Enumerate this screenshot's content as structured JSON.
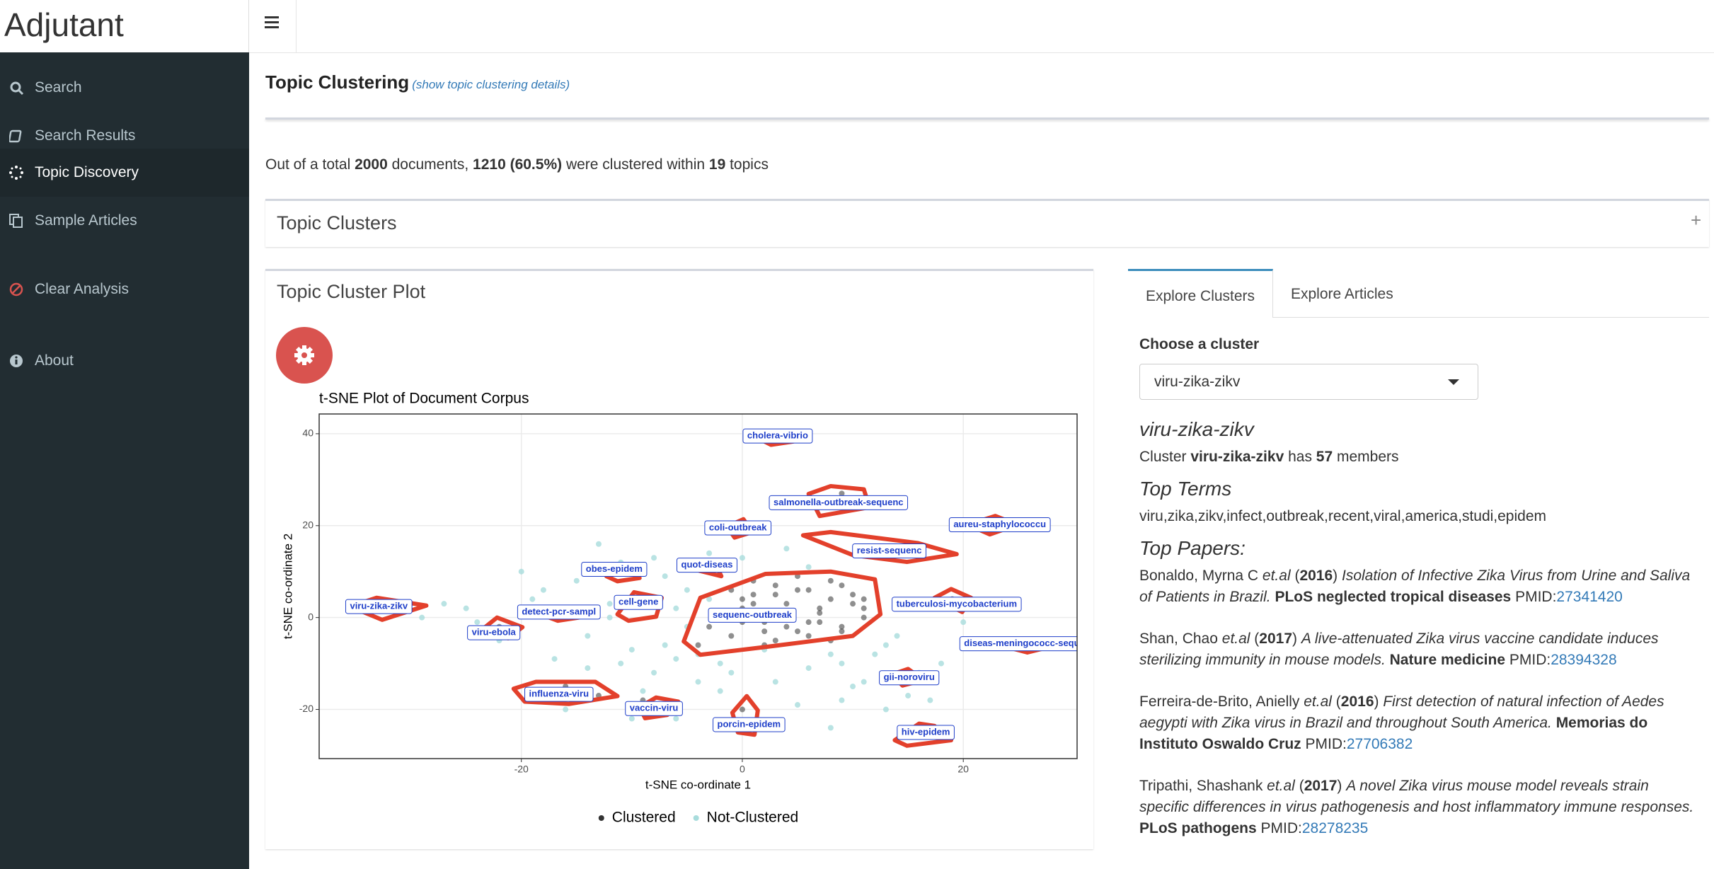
{
  "app": {
    "brand": "Adjutant",
    "nav": [
      {
        "label": "Search",
        "icon": "search"
      },
      {
        "label": "Search Results",
        "icon": "book"
      },
      {
        "label": "Topic Discovery",
        "icon": "spinner"
      },
      {
        "label": "Sample Articles",
        "icon": "copy"
      },
      {
        "label": "Clear Analysis",
        "icon": "ban"
      },
      {
        "label": "About",
        "icon": "info"
      }
    ],
    "active_nav": 2
  },
  "header": {
    "title": "Topic Clustering",
    "details_link": "(show topic clustering details)"
  },
  "summary": [
    {
      "text": "Out of a total ",
      "style": "n"
    },
    {
      "text": "2000",
      "style": "b"
    },
    {
      "text": " documents, ",
      "style": "n"
    },
    {
      "text": "1210 (60.5%)",
      "style": "b"
    },
    {
      "text": " were clustered within ",
      "style": "n"
    },
    {
      "text": "19",
      "style": "b"
    },
    {
      "text": " topics",
      "style": "n"
    }
  ],
  "clusters_box": {
    "title": "Topic Clusters",
    "toggle": "+"
  },
  "plot_box": {
    "title": "Topic Cluster Plot"
  },
  "chart_data": {
    "type": "scatter",
    "title": "t-SNE Plot of Document Corpus",
    "xlabel": "t-SNE co-ordinate 1",
    "ylabel": "t-SNE co-ordinate 2",
    "xlim": [
      -38.3,
      30.3
    ],
    "ylim": [
      -30.7,
      44.3
    ],
    "xticks": [
      -20,
      0,
      20
    ],
    "yticks": [
      -20,
      0,
      20,
      40
    ],
    "grid": true,
    "legend": "bottom",
    "hull_color": "#e3402b",
    "label_color": "#1f3fc9",
    "series": [
      {
        "name": "Clustered",
        "color": "#333333",
        "x": [
          0,
          1,
          2,
          3,
          4,
          5,
          6,
          7,
          8,
          9,
          10,
          11,
          -2,
          -1,
          1,
          3,
          5,
          7,
          9,
          11,
          -3,
          0,
          2,
          4,
          6,
          8,
          10,
          -4,
          -1,
          2,
          5,
          8,
          11,
          1,
          4,
          7,
          3,
          6,
          9,
          0,
          -33,
          -31,
          -22,
          -21,
          -16,
          -9,
          -8,
          -15,
          -13,
          0,
          1,
          16,
          17,
          9,
          10,
          14,
          15,
          19
        ],
        "y": [
          2,
          5,
          -1,
          7,
          3,
          -3,
          6,
          1,
          4,
          -2,
          5,
          2,
          0,
          -4,
          8,
          -5,
          9,
          -1,
          7,
          0,
          -2,
          4,
          -6,
          1,
          -4,
          8,
          3,
          -6,
          6,
          -3,
          6,
          -5,
          4,
          3,
          -2,
          2,
          5,
          -1,
          -3,
          -1,
          2,
          3,
          -2,
          -3,
          -15,
          -18,
          -19,
          -16,
          -17,
          -20,
          -23,
          -24,
          -26,
          27,
          25,
          15,
          16,
          4
        ]
      },
      {
        "name": "Not-Clustered",
        "color": "#a8dcdc",
        "x": [
          -25,
          -22,
          -19,
          -17,
          -14,
          -12,
          -10,
          -8,
          -6,
          -4,
          -2,
          -13,
          -11,
          -7,
          -5,
          -3,
          12,
          14,
          15,
          16,
          18,
          9,
          10,
          13,
          -15,
          -18,
          -9,
          -6,
          -1,
          3,
          6,
          8,
          11,
          -24,
          -20,
          -16,
          -7,
          -3,
          2,
          5,
          9,
          13,
          -12,
          -8,
          -4,
          0,
          4,
          -14,
          -10,
          14,
          17,
          -27,
          -29,
          6,
          -5,
          -11,
          20,
          8,
          -6,
          -2
        ],
        "y": [
          2,
          -5,
          4,
          -9,
          -11,
          3,
          -7,
          -12,
          -9,
          -14,
          -10,
          16,
          12,
          9,
          -2,
          14,
          -8,
          -13,
          -17,
          -12,
          -10,
          -18,
          -15,
          -6,
          8,
          6,
          -16,
          2,
          -12,
          -14,
          -11,
          -8,
          -14,
          -1,
          10,
          -20,
          -6,
          4,
          -7,
          -19,
          -10,
          -20,
          0,
          13,
          -8,
          13,
          15,
          -4,
          -22,
          -4,
          -18,
          3,
          0,
          11,
          6,
          -10,
          -1,
          -24,
          -22,
          -16
        ]
      }
    ],
    "clusters": [
      {
        "label": "cholera-vibrio",
        "x": 3.2,
        "y": 39.5,
        "hull": [
          [
            1.6,
            38.8
          ],
          [
            3.6,
            40
          ],
          [
            4.6,
            38.3
          ],
          [
            2.6,
            37.6
          ]
        ]
      },
      {
        "label": "salmonella-outbreak-sequenc",
        "x": 8.7,
        "y": 25,
        "hull": [
          [
            6,
            26.9
          ],
          [
            8,
            28.6
          ],
          [
            11,
            27.9
          ],
          [
            11.5,
            24
          ],
          [
            7,
            22.1
          ]
        ]
      },
      {
        "label": "aureu-staphylococcu",
        "x": 23.3,
        "y": 20.2,
        "hull": [
          [
            20.4,
            20.2
          ],
          [
            22.9,
            22.1
          ],
          [
            24.9,
            20.2
          ],
          [
            22.4,
            18.1
          ]
        ]
      },
      {
        "label": "coli-outbreak",
        "x": -0.4,
        "y": 19.5,
        "hull": [
          [
            -1.4,
            19.8
          ],
          [
            0.1,
            21.4
          ],
          [
            0.9,
            18.6
          ],
          [
            -0.7,
            17.4
          ]
        ]
      },
      {
        "label": "resist-sequenc",
        "x": 13.3,
        "y": 14.5,
        "hull": [
          [
            5.5,
            17.9
          ],
          [
            8,
            18.6
          ],
          [
            15.9,
            16.2
          ],
          [
            19.4,
            13.8
          ],
          [
            14.9,
            12.1
          ],
          [
            10,
            13.6
          ]
        ]
      },
      {
        "label": "obes-epidem",
        "x": -11.6,
        "y": 10.5,
        "hull": [
          [
            -12.3,
            9
          ],
          [
            -10.3,
            10.2
          ],
          [
            -9.3,
            8.6
          ],
          [
            -11.3,
            7.9
          ]
        ]
      },
      {
        "label": "quot-diseas",
        "x": -3.2,
        "y": 11.4,
        "hull": [
          [
            -3.9,
            10.2
          ],
          [
            -2.4,
            11.4
          ],
          [
            -1.9,
            9
          ]
        ]
      },
      {
        "label": "viru-zika-zikv",
        "x": -32.9,
        "y": 2.4,
        "hull": [
          [
            -35.5,
            2.4
          ],
          [
            -33.1,
            4.3
          ],
          [
            -28.6,
            2.6
          ],
          [
            -32.6,
            -0.5
          ]
        ]
      },
      {
        "label": "cell-gene",
        "x": -9.4,
        "y": 3.3,
        "hull": [
          [
            -11.3,
            0.7
          ],
          [
            -9.8,
            5.5
          ],
          [
            -7.3,
            4.3
          ],
          [
            -7.8,
            0.2
          ],
          [
            -10.3,
            -0.7
          ]
        ]
      },
      {
        "label": "detect-pcr-sampl",
        "x": -16.6,
        "y": 1.2,
        "hull": [
          [
            -17.7,
            0.2
          ],
          [
            -15.7,
            1.7
          ],
          [
            -14.8,
            0
          ],
          [
            -16.7,
            -0.7
          ]
        ]
      },
      {
        "label": "tuberculosi-mycobacterium",
        "x": 19.4,
        "y": 2.9,
        "hull": [
          [
            17.4,
            4.3
          ],
          [
            18.9,
            6.2
          ],
          [
            20.7,
            4.3
          ],
          [
            19.9,
            1.2
          ]
        ]
      },
      {
        "label": "sequenc-outbreak",
        "x": 0.9,
        "y": 0.5,
        "hull": [
          [
            -5.3,
            -5.2
          ],
          [
            -3.8,
            4.3
          ],
          [
            2.1,
            9.5
          ],
          [
            8,
            10
          ],
          [
            12,
            8.3
          ],
          [
            12.5,
            0.7
          ],
          [
            10,
            -4
          ],
          [
            2.1,
            -6.4
          ],
          [
            -3.8,
            -8.1
          ]
        ]
      },
      {
        "label": "viru-ebola",
        "x": -22.5,
        "y": -3.3,
        "hull": [
          [
            -23.7,
            -2.9
          ],
          [
            -22.2,
            0
          ],
          [
            -19.9,
            -2.1
          ],
          [
            -21.2,
            -4.5
          ]
        ]
      },
      {
        "label": "diseas-meningococc-sequ",
        "x": 25.3,
        "y": -5.7,
        "hull": [
          [
            23.9,
            -6.4
          ],
          [
            25.8,
            -5.2
          ],
          [
            27.8,
            -6.4
          ],
          [
            25.8,
            -7.6
          ]
        ]
      },
      {
        "label": "gii-noroviru",
        "x": 15.1,
        "y": -13.1,
        "hull": [
          [
            13.5,
            -12.4
          ],
          [
            15,
            -11.2
          ],
          [
            16.4,
            -13.6
          ],
          [
            14.5,
            -14.8
          ]
        ]
      },
      {
        "label": "influenza-viru",
        "x": -16.6,
        "y": -16.7,
        "hull": [
          [
            -20.7,
            -15.5
          ],
          [
            -18.7,
            -14
          ],
          [
            -13.3,
            -14
          ],
          [
            -11.3,
            -17.1
          ],
          [
            -15.7,
            -18.8
          ],
          [
            -19.7,
            -18.3
          ]
        ]
      },
      {
        "label": "vaccin-viru",
        "x": -8,
        "y": -19.8,
        "hull": [
          [
            -9.3,
            -19.5
          ],
          [
            -7.8,
            -17.4
          ],
          [
            -5.8,
            -18.3
          ],
          [
            -6.8,
            -21.2
          ],
          [
            -8.8,
            -21.9
          ]
        ]
      },
      {
        "label": "porcin-epidem",
        "x": 0.6,
        "y": -23.3,
        "hull": [
          [
            -0.9,
            -20.7
          ],
          [
            0.4,
            -17.1
          ],
          [
            1.4,
            -20.2
          ],
          [
            1.1,
            -25.5
          ],
          [
            -0.4,
            -25
          ]
        ]
      },
      {
        "label": "hiv-epidem",
        "x": 16.6,
        "y": -25,
        "hull": [
          [
            13.8,
            -26.7
          ],
          [
            16,
            -23.1
          ],
          [
            17.4,
            -23.6
          ],
          [
            18.9,
            -26.7
          ],
          [
            14.9,
            -27.9
          ]
        ]
      }
    ]
  },
  "explore": {
    "tabs": [
      "Explore Clusters",
      "Explore Articles"
    ],
    "active_tab": 0,
    "choose_label": "Choose a cluster",
    "select_value": "viru-zika-zikv",
    "cluster_title": "viru-zika-zikv",
    "cluster_line": [
      {
        "text": "Cluster ",
        "style": "n"
      },
      {
        "text": "viru-zika-zikv",
        "style": "b"
      },
      {
        "text": " has ",
        "style": "n"
      },
      {
        "text": "57",
        "style": "b"
      },
      {
        "text": " members",
        "style": "n"
      }
    ],
    "top_terms_title": "Top Terms",
    "top_terms": "viru,zika,zikv,infect,outbreak,recent,viral,america,studi,epidem",
    "top_papers_title": "Top Papers:",
    "papers": [
      [
        {
          "text": "Bonaldo, Myrna C ",
          "style": "n"
        },
        {
          "text": "et.al",
          "style": "i"
        },
        {
          "text": " (",
          "style": "n"
        },
        {
          "text": "2016",
          "style": "b"
        },
        {
          "text": ") ",
          "style": "n"
        },
        {
          "text": "Isolation of Infective Zika Virus from Urine and Saliva of Patients in Brazil.",
          "style": "i"
        },
        {
          "text": " ",
          "style": "n"
        },
        {
          "text": "PLoS neglected tropical diseases",
          "style": "b"
        },
        {
          "text": " PMID:",
          "style": "n"
        },
        {
          "text": "27341420",
          "style": "a"
        }
      ],
      [
        {
          "text": "Shan, Chao ",
          "style": "n"
        },
        {
          "text": "et.al",
          "style": "i"
        },
        {
          "text": " (",
          "style": "n"
        },
        {
          "text": "2017",
          "style": "b"
        },
        {
          "text": ") ",
          "style": "n"
        },
        {
          "text": "A live-attenuated Zika virus vaccine candidate induces sterilizing immunity in mouse models.",
          "style": "i"
        },
        {
          "text": " ",
          "style": "n"
        },
        {
          "text": "Nature medicine",
          "style": "b"
        },
        {
          "text": " PMID:",
          "style": "n"
        },
        {
          "text": "28394328",
          "style": "a"
        }
      ],
      [
        {
          "text": "Ferreira-de-Brito, Anielly ",
          "style": "n"
        },
        {
          "text": "et.al",
          "style": "i"
        },
        {
          "text": " (",
          "style": "n"
        },
        {
          "text": "2016",
          "style": "b"
        },
        {
          "text": ") ",
          "style": "n"
        },
        {
          "text": "First detection of natural infection of Aedes aegypti with Zika virus in Brazil and throughout South America.",
          "style": "i"
        },
        {
          "text": " ",
          "style": "n"
        },
        {
          "text": "Memorias do Instituto Oswaldo Cruz",
          "style": "b"
        },
        {
          "text": " PMID:",
          "style": "n"
        },
        {
          "text": "27706382",
          "style": "a"
        }
      ],
      [
        {
          "text": "Tripathi, Shashank ",
          "style": "n"
        },
        {
          "text": "et.al",
          "style": "i"
        },
        {
          "text": " (",
          "style": "n"
        },
        {
          "text": "2017",
          "style": "b"
        },
        {
          "text": ") ",
          "style": "n"
        },
        {
          "text": "A novel Zika virus mouse model reveals strain specific differences in virus pathogenesis and host inflammatory immune responses.",
          "style": "i"
        },
        {
          "text": " ",
          "style": "n"
        },
        {
          "text": "PLoS pathogens",
          "style": "b"
        },
        {
          "text": " PMID:",
          "style": "n"
        },
        {
          "text": "28278235",
          "style": "a"
        }
      ]
    ]
  }
}
